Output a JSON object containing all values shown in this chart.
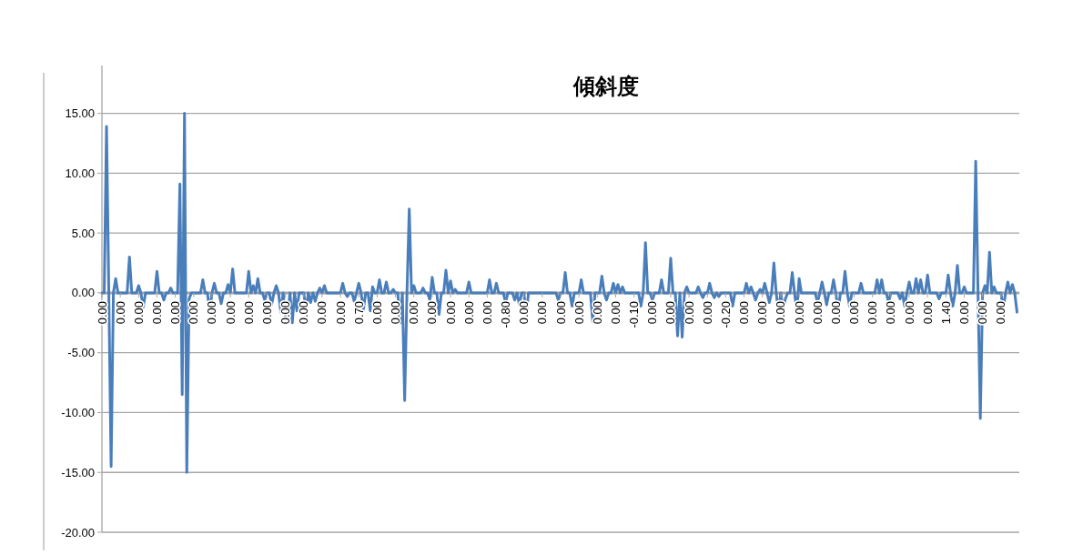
{
  "chart_data": {
    "type": "line",
    "title": "傾斜度",
    "categories": [
      "0.00",
      null,
      null,
      null,
      null,
      null,
      null,
      null,
      "0.00",
      null,
      null,
      null,
      null,
      null,
      null,
      null,
      "0.00",
      null,
      null,
      null,
      null,
      null,
      null,
      null,
      "0.00",
      null,
      null,
      null,
      null,
      null,
      null,
      null,
      "0.00",
      null,
      null,
      null,
      null,
      null,
      null,
      null,
      "0.00",
      null,
      null,
      null,
      null,
      null,
      null,
      null,
      "0.00",
      null,
      null,
      null,
      null,
      null,
      null,
      null,
      "0.00",
      null,
      null,
      null,
      null,
      null,
      null,
      null,
      "0.00",
      null,
      null,
      null,
      null,
      null,
      null,
      null,
      "0.00",
      null,
      null,
      null,
      null,
      null,
      null,
      null,
      "0.00",
      null,
      null,
      null,
      null,
      null,
      null,
      null,
      "0.00",
      null,
      null,
      null,
      null,
      null,
      null,
      null,
      "0.00",
      null,
      null,
      null,
      null,
      null,
      null,
      null,
      "0.00",
      null,
      null,
      null,
      null,
      null,
      null,
      null,
      "0.70",
      null,
      null,
      null,
      null,
      null,
      null,
      null,
      "0.00",
      null,
      null,
      null,
      null,
      null,
      null,
      null,
      "0.00",
      null,
      null,
      null,
      null,
      null,
      null,
      null,
      "0.00",
      null,
      null,
      null,
      null,
      null,
      null,
      null,
      "0.00",
      null,
      null,
      null,
      null,
      null,
      null,
      null,
      "0.00",
      null,
      null,
      null,
      null,
      null,
      null,
      null,
      "0.00",
      null,
      null,
      null,
      null,
      null,
      null,
      null,
      "0.00",
      null,
      null,
      null,
      null,
      null,
      null,
      null,
      "-0.80",
      null,
      null,
      null,
      null,
      null,
      null,
      null,
      "0.00",
      null,
      null,
      null,
      null,
      null,
      null,
      null,
      "0.00",
      null,
      null,
      null,
      null,
      null,
      null,
      null,
      "0.00",
      null,
      null,
      null,
      null,
      null,
      null,
      null,
      "0.00",
      null,
      null,
      null,
      null,
      null,
      null,
      null,
      "0.00",
      null,
      null,
      null,
      null,
      null,
      null,
      null,
      "0.00",
      null,
      null,
      null,
      null,
      null,
      null,
      null,
      "-0.10",
      null,
      null,
      null,
      null,
      null,
      null,
      null,
      "0.00",
      null,
      null,
      null,
      null,
      null,
      null,
      null,
      "0.00",
      null,
      null,
      null,
      null,
      null,
      null,
      null,
      "0.00",
      null,
      null,
      null,
      null,
      null,
      null,
      null,
      "0.00",
      null,
      null,
      null,
      null,
      null,
      null,
      null,
      "-0.20",
      null,
      null,
      null,
      null,
      null,
      null,
      null,
      "0.00",
      null,
      null,
      null,
      null,
      null,
      null,
      null,
      "0.00",
      null,
      null,
      null,
      null,
      null,
      null,
      null,
      "0.00",
      null,
      null,
      null,
      null,
      null,
      null,
      null,
      "0.00",
      null,
      null,
      null,
      null,
      null,
      null,
      null,
      "0.00",
      null,
      null,
      null,
      null,
      null,
      null,
      null,
      "0.00",
      null,
      null,
      null,
      null,
      null,
      null,
      null,
      "0.00",
      null,
      null,
      null,
      null,
      null,
      null,
      null,
      "0.00",
      null,
      null,
      null,
      null,
      null,
      null,
      null,
      "0.00",
      null,
      null,
      null,
      null,
      null,
      null,
      null,
      "0.00",
      null,
      null,
      null,
      null,
      null,
      null,
      null,
      "0.00",
      null,
      null,
      null,
      null,
      null,
      null,
      null,
      "1.40",
      null,
      null,
      null,
      null,
      null,
      null,
      null,
      "0.00",
      null,
      null,
      null,
      null,
      null,
      null,
      null,
      "0.00",
      null,
      null,
      null,
      null,
      null,
      null,
      null,
      "0.00",
      null,
      null,
      null,
      null,
      null,
      null,
      null
    ],
    "series": [
      {
        "color": "#4a7ebb",
        "values": [
          0,
          0,
          13.9,
          0,
          -14.5,
          0,
          1.2,
          0,
          0,
          0,
          0,
          0,
          3.0,
          0,
          0,
          0,
          0.6,
          0,
          -1.2,
          0,
          0,
          0,
          0,
          0,
          1.8,
          0,
          0,
          -0.6,
          0,
          0,
          0.4,
          0,
          0,
          0,
          9.1,
          -8.5,
          15.0,
          -15.0,
          -0.5,
          0,
          0,
          0,
          0,
          0,
          1.1,
          0,
          0,
          -1.6,
          0,
          0.8,
          0,
          0,
          -0.9,
          0,
          0,
          0.7,
          0,
          2.0,
          0,
          0,
          0,
          0,
          0,
          0,
          1.8,
          0,
          0.6,
          0,
          1.2,
          0,
          0,
          -0.6,
          0,
          0,
          -1.0,
          0,
          0.6,
          0,
          -1.6,
          0,
          -1.9,
          -1.8,
          0,
          -2.5,
          0,
          -1.5,
          0,
          0,
          0,
          -1.5,
          0,
          -0.8,
          0,
          -0.7,
          0,
          0.4,
          0,
          0.6,
          0,
          0,
          0,
          0,
          0,
          0,
          0,
          0.8,
          0,
          -0.3,
          0,
          0,
          -0.7,
          0,
          0.8,
          0,
          -1.4,
          0,
          0,
          -1.5,
          0.5,
          0,
          0,
          1.1,
          0,
          0,
          0.9,
          0,
          0,
          0.3,
          0,
          0,
          -2.5,
          0,
          -9.0,
          0,
          7.0,
          0,
          0.6,
          0,
          0,
          0,
          0.4,
          0,
          0,
          -0.6,
          1.3,
          0,
          0,
          -1.8,
          0,
          0,
          1.9,
          0,
          1.0,
          0,
          0.3,
          0,
          0,
          0,
          0,
          0,
          0.9,
          0,
          0,
          0,
          0,
          0,
          0,
          0,
          0,
          1.1,
          0,
          0,
          0.8,
          0,
          0,
          0,
          -0.8,
          0,
          0,
          0,
          -0.6,
          0,
          -1.0,
          0,
          0,
          -1.9,
          0,
          0,
          0,
          0,
          0,
          0,
          0,
          0,
          0,
          0,
          0,
          0,
          0,
          -0.6,
          0,
          0,
          1.7,
          0,
          0,
          -1.1,
          0,
          0,
          0,
          1.1,
          0,
          0,
          0,
          0,
          -2.4,
          0,
          0,
          0,
          1.4,
          0,
          -0.6,
          0,
          0,
          0.8,
          0,
          0.7,
          0,
          0.5,
          0,
          0,
          0,
          0,
          0,
          0,
          0,
          -1.1,
          0,
          4.2,
          0,
          0,
          -0.6,
          0,
          0,
          0,
          1.1,
          0,
          0,
          0,
          2.9,
          0,
          0,
          -3.6,
          0,
          -3.7,
          0,
          0.5,
          0,
          0,
          0,
          0,
          0.5,
          0,
          -0.4,
          0,
          0,
          0.8,
          0,
          -0.4,
          0,
          -0.3,
          0,
          0,
          0,
          0,
          0,
          -1.1,
          0,
          0,
          0,
          0,
          0,
          0.8,
          0,
          0.5,
          0,
          -0.6,
          0,
          0.3,
          0,
          0.8,
          0,
          -0.8,
          0,
          2.5,
          0,
          -1.6,
          0,
          -1.4,
          -0.5,
          0,
          0,
          1.7,
          0,
          -1.6,
          1.2,
          0,
          0,
          0,
          0,
          0,
          0,
          0,
          -0.8,
          0,
          0.9,
          0,
          -1.0,
          0,
          0,
          1.1,
          0,
          -1.6,
          0,
          0,
          1.8,
          0,
          -1.1,
          0,
          0,
          0,
          0,
          0.8,
          0,
          0,
          0,
          0,
          0,
          0,
          1.1,
          0,
          1.1,
          0,
          0,
          -0.8,
          0,
          0,
          0,
          0,
          -0.5,
          0,
          -1.1,
          0,
          0.9,
          0,
          0,
          1.2,
          0,
          1.1,
          0,
          0,
          1.5,
          0,
          0,
          0,
          0,
          -0.5,
          0,
          0,
          0,
          1.5,
          0,
          -1.1,
          0,
          2.3,
          0,
          0,
          0.5,
          0,
          0,
          0,
          0,
          11.0,
          0,
          -10.5,
          0,
          0.6,
          0,
          3.4,
          0,
          0.5,
          0,
          0,
          0,
          -1.4,
          0,
          0.9,
          0,
          0.7,
          0,
          -1.6
        ]
      }
    ],
    "ylim": [
      -20,
      19
    ],
    "yticks": [
      {
        "value": -20,
        "label": "-20.00"
      },
      {
        "value": -15,
        "label": "-15.00"
      },
      {
        "value": -10,
        "label": "-10.00"
      },
      {
        "value": -5,
        "label": "-5.00"
      },
      {
        "value": 0,
        "label": "0.00"
      },
      {
        "value": 5,
        "label": "5.00"
      },
      {
        "value": 10,
        "label": "10.00"
      },
      {
        "value": 15,
        "label": "15.00"
      }
    ],
    "grid": "y"
  }
}
